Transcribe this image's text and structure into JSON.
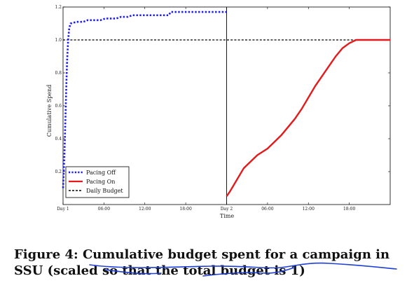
{
  "chart_data": {
    "type": "line",
    "title": "",
    "xlabel": "Time",
    "ylabel": "Cumulative Spend",
    "ylim": [
      0,
      1.2
    ],
    "xlim_hours": [
      0,
      48
    ],
    "x_ticks": [
      {
        "hour": 0,
        "label": "Day 1"
      },
      {
        "hour": 6,
        "label": "06:00"
      },
      {
        "hour": 12,
        "label": "12:00"
      },
      {
        "hour": 18,
        "label": "18:00"
      },
      {
        "hour": 24,
        "label": "Day 2"
      },
      {
        "hour": 30,
        "label": "06:00"
      },
      {
        "hour": 36,
        "label": "12:00"
      },
      {
        "hour": 42,
        "label": "18:00"
      }
    ],
    "y_ticks": [
      {
        "value": 0.2,
        "label": "0.2"
      },
      {
        "value": 0.4,
        "label": "0.4"
      },
      {
        "value": 0.6,
        "label": "0.6"
      },
      {
        "value": 0.8,
        "label": "0.8"
      },
      {
        "value": 1.0,
        "label": "1.0"
      },
      {
        "value": 1.2,
        "label": "1.2"
      }
    ],
    "day_divider_hour": 24,
    "grid": false,
    "legend_position": "bottom-left",
    "series": [
      {
        "name": "Pacing Off",
        "color": "#1a1aff",
        "style": "dotted",
        "points": [
          [
            0.0,
            0.1
          ],
          [
            0.1,
            0.2
          ],
          [
            0.2,
            0.3
          ],
          [
            0.3,
            0.45
          ],
          [
            0.4,
            0.6
          ],
          [
            0.5,
            0.75
          ],
          [
            0.6,
            0.88
          ],
          [
            0.75,
            1.0
          ],
          [
            0.9,
            1.07
          ],
          [
            1.1,
            1.1
          ],
          [
            2.0,
            1.11
          ],
          [
            3.0,
            1.11
          ],
          [
            3.6,
            1.12
          ],
          [
            5.5,
            1.12
          ],
          [
            6.2,
            1.13
          ],
          [
            7.8,
            1.13
          ],
          [
            8.5,
            1.14
          ],
          [
            9.5,
            1.14
          ],
          [
            10.2,
            1.15
          ],
          [
            15.5,
            1.15
          ],
          [
            15.8,
            1.17
          ],
          [
            24.0,
            1.17
          ]
        ]
      },
      {
        "name": "Pacing On",
        "color": "#e31a1c",
        "style": "solid",
        "points": [
          [
            24.0,
            0.05
          ],
          [
            24.5,
            0.08
          ],
          [
            25.5,
            0.15
          ],
          [
            26.5,
            0.22
          ],
          [
            27.5,
            0.26
          ],
          [
            28.5,
            0.3
          ],
          [
            30.0,
            0.34
          ],
          [
            31.0,
            0.38
          ],
          [
            32.0,
            0.42
          ],
          [
            33.0,
            0.47
          ],
          [
            34.0,
            0.52
          ],
          [
            35.0,
            0.58
          ],
          [
            36.0,
            0.65
          ],
          [
            37.0,
            0.72
          ],
          [
            38.0,
            0.78
          ],
          [
            39.0,
            0.84
          ],
          [
            40.0,
            0.9
          ],
          [
            41.0,
            0.95
          ],
          [
            42.0,
            0.98
          ],
          [
            43.0,
            1.0
          ],
          [
            48.0,
            1.0
          ]
        ]
      },
      {
        "name": "Daily Budget",
        "color": "#000000",
        "style": "dashed",
        "points": [
          [
            0,
            1.0
          ],
          [
            48,
            1.0
          ]
        ]
      }
    ]
  },
  "caption": {
    "label": "Figure 4:",
    "text": "Cumulative budget spent for a campaign in SSU (scaled so that the total budget is 1)"
  },
  "annotation_color": "#1f3fd6"
}
